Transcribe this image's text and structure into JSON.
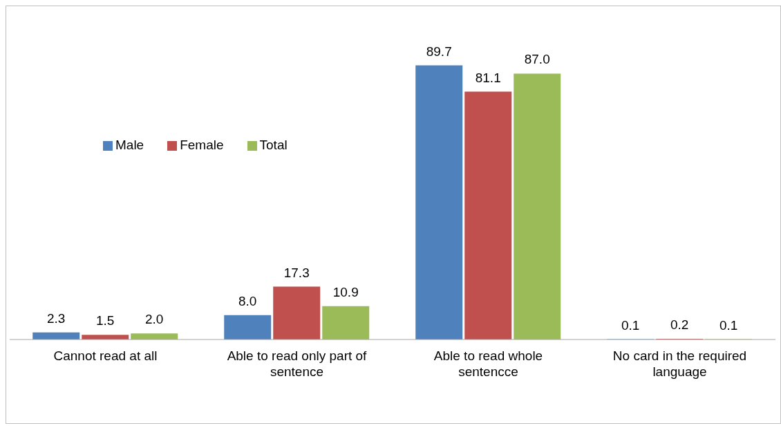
{
  "chart_data": {
    "type": "bar",
    "categories": [
      "Cannot read at all",
      "Able to read only part of sentence",
      "Able to read whole sentencce",
      "No card in the required language"
    ],
    "series": [
      {
        "name": "Male",
        "color": "#4f81bd",
        "values": [
          2.3,
          8.0,
          89.7,
          0.1
        ],
        "value_labels": [
          "2.3",
          "8.0",
          "89.7",
          "0.1"
        ]
      },
      {
        "name": "Female",
        "color": "#c0504d",
        "values": [
          1.5,
          17.3,
          81.1,
          0.2
        ],
        "value_labels": [
          "1.5",
          "17.3",
          "81.1",
          "0.2"
        ]
      },
      {
        "name": "Total",
        "color": "#9bbb59",
        "values": [
          2.0,
          10.9,
          87.0,
          0.1
        ],
        "value_labels": [
          "2.0",
          "10.9",
          "87.0",
          "0.1"
        ]
      }
    ],
    "legend": "left",
    "grid": false
  }
}
